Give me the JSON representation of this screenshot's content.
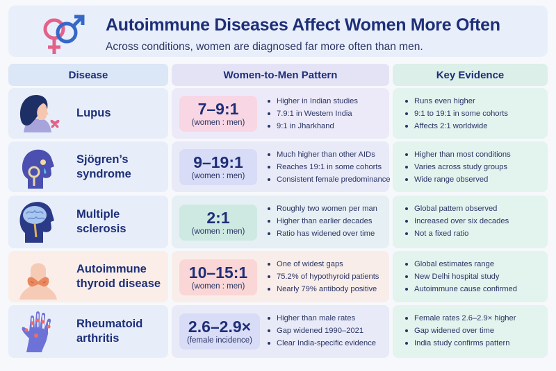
{
  "header": {
    "title": "Autoimmune Diseases Affect Women More Often",
    "subtitle": "Across conditions, women are diagnosed far more often than men."
  },
  "columns": [
    "Disease",
    "Women-to-Men Pattern",
    "Key Evidence"
  ],
  "rows": [
    {
      "disease": "Lupus",
      "disease_lines": [
        "Lupus"
      ],
      "icon": "woman-profile-butterfly-icon",
      "ratio": "7–9:1",
      "ratio_note": "(women : men)",
      "pattern_points": [
        "Higher in Indian studies",
        "7.9:1 in Western India",
        "9:1 in Jharkhand"
      ],
      "evidence_points": [
        "Runs even higher",
        "9:1 to 19:1 in some cohorts",
        "Affects 2:1 worldwide"
      ]
    },
    {
      "disease": "Sjögren’s syndrome",
      "disease_lines": [
        "Sjögren’s",
        "syndrome"
      ],
      "icon": "head-dry-eye-icon",
      "ratio": "9–19:1",
      "ratio_note": "(women : men)",
      "pattern_points": [
        "Much higher than other AIDs",
        "Reaches 19:1 in some cohorts",
        "Consistent female predominance"
      ],
      "evidence_points": [
        "Higher than most conditions",
        "Varies across study groups",
        "Wide range observed"
      ]
    },
    {
      "disease": "Multiple sclerosis",
      "disease_lines": [
        "Multiple",
        "sclerosis"
      ],
      "icon": "head-brain-icon",
      "ratio": "2:1",
      "ratio_note": "(women : men)",
      "pattern_points": [
        "Roughly two women per man",
        "Higher than earlier decades",
        "Ratio has widened over time"
      ],
      "evidence_points": [
        "Global pattern observed",
        "Increased over six decades",
        "Not a fixed ratio"
      ]
    },
    {
      "disease": "Autoimmune thyroid disease",
      "disease_lines": [
        "Autoimmune",
        "thyroid disease"
      ],
      "icon": "thyroid-neck-icon",
      "ratio": "10–15:1",
      "ratio_note": "(women : men)",
      "pattern_points": [
        "One of widest gaps",
        "75.2% of hypothyroid patients",
        "Nearly 79% antibody positive"
      ],
      "evidence_points": [
        "Global estimates range",
        "New Delhi hospital study",
        "Autoimmune cause confirmed"
      ]
    },
    {
      "disease": "Rheumatoid arthritis",
      "disease_lines": [
        "Rheumatoid",
        "arthritis"
      ],
      "icon": "hand-xray-joints-icon",
      "ratio": "2.6–2.9×",
      "ratio_note": "(female incidence)",
      "pattern_points": [
        "Higher than male rates",
        "Gap widened 1990–2021",
        "Clear India-specific evidence"
      ],
      "evidence_points": [
        "Female rates 2.6–2.9× higher",
        "Gap widened over time",
        "India study confirms pattern"
      ]
    }
  ],
  "colors": {
    "title": "#1e2f78",
    "female_symbol": "#e2628c",
    "male_symbol": "#3568c8",
    "ratio_pink": "#f8d6e3",
    "ratio_lavender": "#d9dcf6",
    "ratio_teal": "#cde9e2",
    "ratio_peach": "#fad6d6"
  }
}
